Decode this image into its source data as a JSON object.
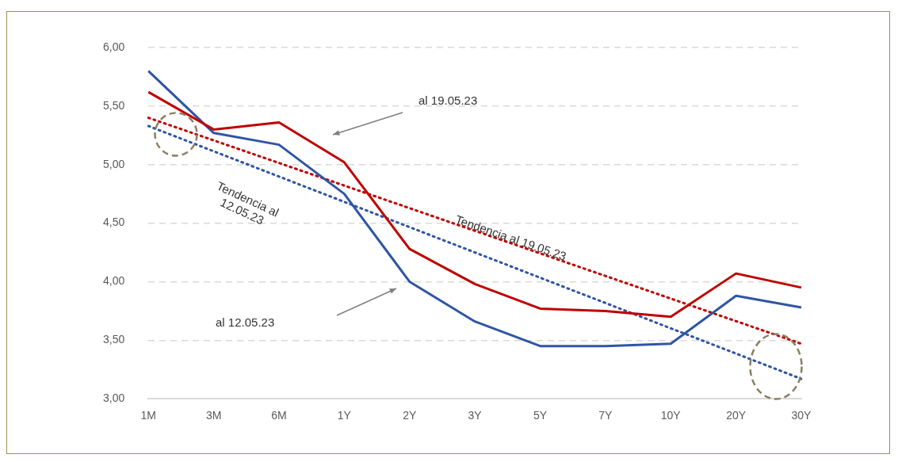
{
  "chart_data": {
    "type": "line",
    "categories": [
      "1M",
      "3M",
      "6M",
      "1Y",
      "2Y",
      "3Y",
      "5Y",
      "7Y",
      "10Y",
      "20Y",
      "30Y"
    ],
    "series": [
      {
        "color": "#c00000",
        "values": [
          5.62,
          5.3,
          5.36,
          5.02,
          4.28,
          3.98,
          3.77,
          3.75,
          3.7,
          4.07,
          3.95
        ]
      },
      {
        "color": "#2f55a4",
        "values": [
          5.8,
          5.27,
          5.17,
          4.75,
          4.0,
          3.66,
          3.45,
          3.45,
          3.47,
          3.88,
          3.78
        ]
      },
      {
        "color": "#c00000",
        "line_style": "dotted",
        "values": [
          5.4,
          null,
          null,
          null,
          null,
          null,
          null,
          null,
          null,
          null,
          3.47
        ]
      },
      {
        "color": "#2f55a4",
        "line_style": "dotted",
        "values": [
          5.33,
          null,
          null,
          null,
          null,
          null,
          null,
          null,
          null,
          null,
          3.17
        ]
      }
    ],
    "ylim": [
      3,
      6
    ],
    "yticks": [
      {
        "value": 3,
        "label": "3,00"
      },
      {
        "value": 3.5,
        "label": "3,50"
      },
      {
        "value": 4,
        "label": "4,00"
      },
      {
        "value": 4.5,
        "label": "4,50"
      },
      {
        "value": 5,
        "label": "5,00"
      },
      {
        "value": 5.5,
        "label": "5,50"
      },
      {
        "value": 6,
        "label": "6,00"
      }
    ],
    "grid": "y",
    "legend": false,
    "marker": "none",
    "line_style": "solid",
    "annotations": [
      "al 19.05.23",
      "al 12.05.23",
      "Tendencia al 12.05.23",
      "Tendencia al 19.05.23"
    ]
  }
}
